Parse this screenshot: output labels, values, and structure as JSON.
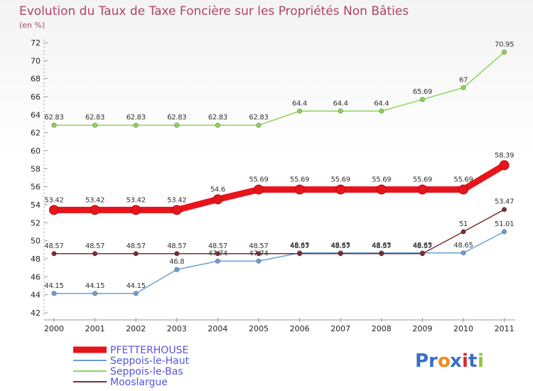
{
  "chart_data": {
    "type": "line",
    "title": "Evolution du Taux de Taxe Foncière sur les Propriétés Non Bâties",
    "ylabel": "(en %)",
    "ylim": [
      42,
      72
    ],
    "yticks": [
      42,
      44,
      46,
      48,
      50,
      52,
      54,
      56,
      58,
      60,
      62,
      64,
      66,
      68,
      70,
      72
    ],
    "categories": [
      "2000",
      "2001",
      "2002",
      "2003",
      "2004",
      "2005",
      "2006",
      "2007",
      "2008",
      "2009",
      "2010",
      "2011"
    ],
    "series": [
      {
        "name": "Seppois-le-Haut",
        "color": "#6b9fd4",
        "values": [
          44.15,
          44.15,
          44.15,
          46.8,
          47.74,
          47.74,
          48.65,
          48.65,
          48.65,
          48.65,
          48.65,
          51.01
        ],
        "labels": [
          "44.15",
          "44.15",
          "44.15",
          "46.8",
          "47.74",
          "47.74",
          "48.65",
          "48.65",
          "48.65",
          "48.65",
          "48.65",
          "51.01"
        ]
      },
      {
        "name": "Seppois-le-Bas",
        "color": "#8ed45a",
        "values": [
          62.83,
          62.83,
          62.83,
          62.83,
          62.83,
          62.83,
          64.4,
          64.4,
          64.4,
          65.69,
          67,
          70.95
        ],
        "labels": [
          "62.83",
          "62.83",
          "62.83",
          "62.83",
          "62.83",
          "62.83",
          "64.4",
          "64.4",
          "64.4",
          "65.69",
          "67",
          "70.95"
        ]
      },
      {
        "name": "Mooslargue",
        "color": "#7a2c36",
        "values": [
          48.57,
          48.57,
          48.57,
          48.57,
          48.57,
          48.57,
          48.57,
          48.57,
          48.57,
          48.57,
          51,
          53.47
        ],
        "labels": [
          "48.57",
          "48.57",
          "48.57",
          "48.57",
          "48.57",
          "48.57",
          "48.57",
          "48.57",
          "48.57",
          "48.57",
          "51",
          "53.47"
        ]
      },
      {
        "name": "PFETTERHOUSE",
        "color": "#e8141c",
        "bold": true,
        "values": [
          53.42,
          53.42,
          53.42,
          53.42,
          54.6,
          55.69,
          55.69,
          55.69,
          55.69,
          55.69,
          55.69,
          58.39
        ],
        "labels": [
          "53.42",
          "53.42",
          "53.42",
          "53.42",
          "54.6",
          "55.69",
          "55.69",
          "55.69",
          "55.69",
          "55.69",
          "55.69",
          "58.39"
        ]
      }
    ],
    "legend": {
      "placement": "bottom-left",
      "items": [
        {
          "name": "PFETTERHOUSE",
          "color": "#e8141c",
          "text_color": "#5555dd"
        },
        {
          "name": "Seppois-le-Haut",
          "color": "#6b9fd4",
          "text_color": "#5555dd"
        },
        {
          "name": "Seppois-le-Bas",
          "color": "#8ed45a",
          "text_color": "#5555dd"
        },
        {
          "name": "Mooslargue",
          "color": "#7a2c36",
          "text_color": "#5555dd"
        }
      ]
    }
  },
  "brand": {
    "letters": [
      "P",
      "r",
      "o",
      "x",
      "i",
      "t",
      "i"
    ],
    "colors": [
      "#3a6fc8",
      "#3a6fc8",
      "#f08a1c",
      "#3a6fc8",
      "#d62b2b",
      "#3a6fc8",
      "#8cc63f"
    ]
  }
}
